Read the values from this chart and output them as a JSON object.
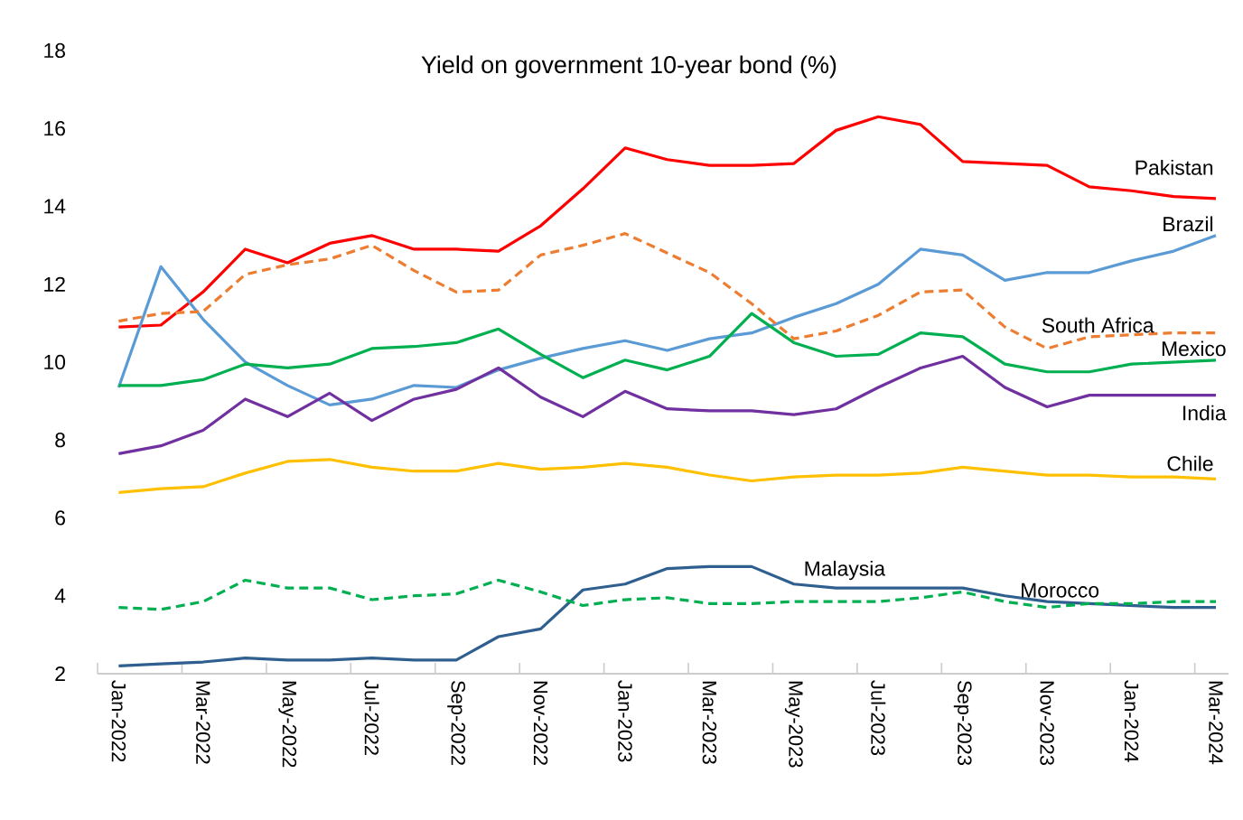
{
  "chart_data": {
    "type": "line",
    "title": "Yield on government 10-year bond (%)",
    "categories": [
      "Jan-2022",
      null,
      "Mar-2022",
      null,
      "May-2022",
      null,
      "Jul-2022",
      null,
      "Sep-2022",
      null,
      "Nov-2022",
      null,
      "Jan-2023",
      null,
      "Mar-2023",
      null,
      "May-2023",
      null,
      "Jul-2023",
      null,
      "Sep-2023",
      null,
      "Nov-2023",
      null,
      "Jan-2024",
      null,
      "Mar-2024"
    ],
    "ylim": [
      2,
      18
    ],
    "yticks": [
      2,
      4,
      6,
      8,
      10,
      12,
      14,
      16,
      18
    ],
    "grid": false,
    "legend": false,
    "series": [
      {
        "name": "Pakistan",
        "color": "#ff0000",
        "values": [
          10.9,
          10.95,
          11.8,
          12.9,
          12.55,
          13.05,
          13.25,
          12.9,
          12.9,
          12.85,
          13.5,
          14.45,
          15.5,
          15.2,
          15.05,
          15.05,
          15.1,
          15.95,
          16.3,
          16.1,
          15.15,
          15.1,
          15.05,
          14.5,
          14.4,
          14.25,
          14.2
        ]
      },
      {
        "name": "Brazil",
        "color": "#5b9bd5",
        "values": [
          9.35,
          12.45,
          11.1,
          10.0,
          9.4,
          8.9,
          9.05,
          9.4,
          9.35,
          9.8,
          10.1,
          10.35,
          10.55,
          10.3,
          10.6,
          10.75,
          11.15,
          11.5,
          12.0,
          12.9,
          12.75,
          12.1,
          12.3,
          12.3,
          12.6,
          12.85,
          13.25
        ]
      },
      {
        "name": "South Africa",
        "color": "#ed7d31",
        "line_style": "dashed",
        "values": [
          11.05,
          11.25,
          11.3,
          12.25,
          12.5,
          12.65,
          13.0,
          12.35,
          11.8,
          11.85,
          12.75,
          13.0,
          13.3,
          12.8,
          12.3,
          11.5,
          10.6,
          10.8,
          11.2,
          11.8,
          11.85,
          10.9,
          10.35,
          10.65,
          10.7,
          10.75,
          10.75
        ]
      },
      {
        "name": "Mexico",
        "color": "#00b050",
        "values": [
          9.4,
          9.4,
          9.55,
          9.95,
          9.85,
          9.95,
          10.35,
          10.4,
          10.5,
          10.85,
          10.2,
          9.6,
          10.05,
          9.8,
          10.15,
          11.25,
          10.5,
          10.15,
          10.2,
          10.75,
          10.65,
          9.95,
          9.75,
          9.75,
          9.95,
          10.0,
          10.05
        ]
      },
      {
        "name": "India",
        "color": "#7030a0",
        "values": [
          7.65,
          7.85,
          8.25,
          9.05,
          8.6,
          9.2,
          8.5,
          9.05,
          9.3,
          9.85,
          9.1,
          8.6,
          9.25,
          8.8,
          8.75,
          8.75,
          8.65,
          8.8,
          9.35,
          9.85,
          10.15,
          9.35,
          8.85,
          9.15,
          9.15,
          9.15,
          9.15
        ]
      },
      {
        "name": "Chile",
        "color": "#ffc000",
        "values": [
          6.65,
          6.75,
          6.8,
          7.15,
          7.45,
          7.5,
          7.3,
          7.2,
          7.2,
          7.4,
          7.25,
          7.3,
          7.4,
          7.3,
          7.1,
          6.95,
          7.05,
          7.1,
          7.1,
          7.15,
          7.3,
          7.2,
          7.1,
          7.1,
          7.05,
          7.05,
          7.0
        ]
      },
      {
        "name": "Malaysia",
        "color": "#2f5f8f",
        "values": [
          2.2,
          2.25,
          2.3,
          2.4,
          2.35,
          2.35,
          2.4,
          2.35,
          2.35,
          2.95,
          3.15,
          4.15,
          4.3,
          4.7,
          4.75,
          4.75,
          4.3,
          4.2,
          4.2,
          4.2,
          4.2,
          4.0,
          3.85,
          3.8,
          3.75,
          3.7,
          3.7
        ]
      },
      {
        "name": "Morocco",
        "color": "#00b050",
        "line_style": "dashed",
        "values": [
          3.7,
          3.65,
          3.85,
          4.4,
          4.2,
          4.2,
          3.9,
          4.0,
          4.05,
          4.4,
          4.1,
          3.75,
          3.9,
          3.95,
          3.8,
          3.8,
          3.85,
          3.85,
          3.85,
          3.95,
          4.1,
          3.85,
          3.7,
          3.8,
          3.8,
          3.85,
          3.85
        ]
      }
    ]
  }
}
